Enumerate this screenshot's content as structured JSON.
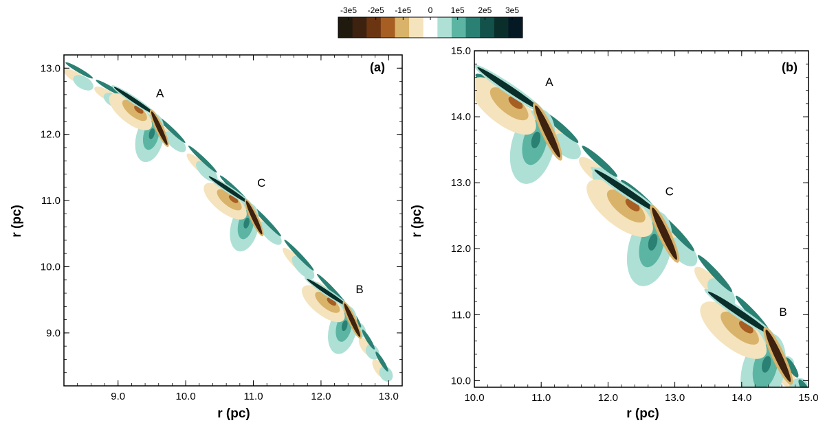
{
  "chart_data": [
    {
      "type": "heatmap",
      "panel_label": "(a)",
      "xlabel": "r (pc)",
      "ylabel": "r (pc)",
      "xlim": [
        8.2,
        13.2
      ],
      "ylim": [
        8.2,
        13.2
      ],
      "x_ticks": [
        "9.0",
        "10.0",
        "11.0",
        "12.0",
        "13.0"
      ],
      "y_ticks": [
        "9.0",
        "10.0",
        "11.0",
        "12.0",
        "13.0"
      ],
      "annotations": [
        {
          "text": "A",
          "x": 9.62,
          "y": 12.56
        },
        {
          "text": "C",
          "x": 11.12,
          "y": 11.21
        },
        {
          "text": "B",
          "x": 12.57,
          "y": 9.6
        }
      ],
      "features": [
        {
          "name": "A",
          "x": 9.55,
          "y": 12.3
        },
        {
          "name": "C",
          "x": 10.95,
          "y": 10.95
        },
        {
          "name": "B",
          "x": 12.4,
          "y": 9.4
        }
      ]
    },
    {
      "type": "heatmap",
      "panel_label": "(b)",
      "xlabel": "r (pc)",
      "ylabel": "r (pc)",
      "xlim": [
        10.0,
        15.0
      ],
      "ylim": [
        9.9,
        15.0
      ],
      "x_ticks": [
        "10.0",
        "11.0",
        "12.0",
        "13.0",
        "14.0",
        "15.0"
      ],
      "y_ticks": [
        "10.0",
        "11.0",
        "12.0",
        "13.0",
        "14.0",
        "15.0"
      ],
      "annotations": [
        {
          "text": "A",
          "x": 11.12,
          "y": 14.47
        },
        {
          "text": "C",
          "x": 12.92,
          "y": 12.81
        },
        {
          "text": "B",
          "x": 14.62,
          "y": 10.98
        }
      ],
      "features": [
        {
          "name": "A",
          "x": 11.0,
          "y": 14.1
        },
        {
          "name": "C",
          "x": 12.75,
          "y": 12.55
        },
        {
          "name": "B",
          "x": 14.45,
          "y": 10.7
        }
      ]
    }
  ],
  "colorbar": {
    "tick_labels": [
      "-3e5",
      "-2e5",
      "-1e5",
      "0",
      "1e5",
      "2e5",
      "3e5"
    ],
    "colors": [
      "#1f1a0d",
      "#3d2210",
      "#6b3511",
      "#a65e22",
      "#d9b36a",
      "#f4e3bd",
      "#ffffff",
      "#aee0d6",
      "#5cb5a3",
      "#2a8073",
      "#12524a",
      "#0a2f2b",
      "#051924"
    ]
  }
}
